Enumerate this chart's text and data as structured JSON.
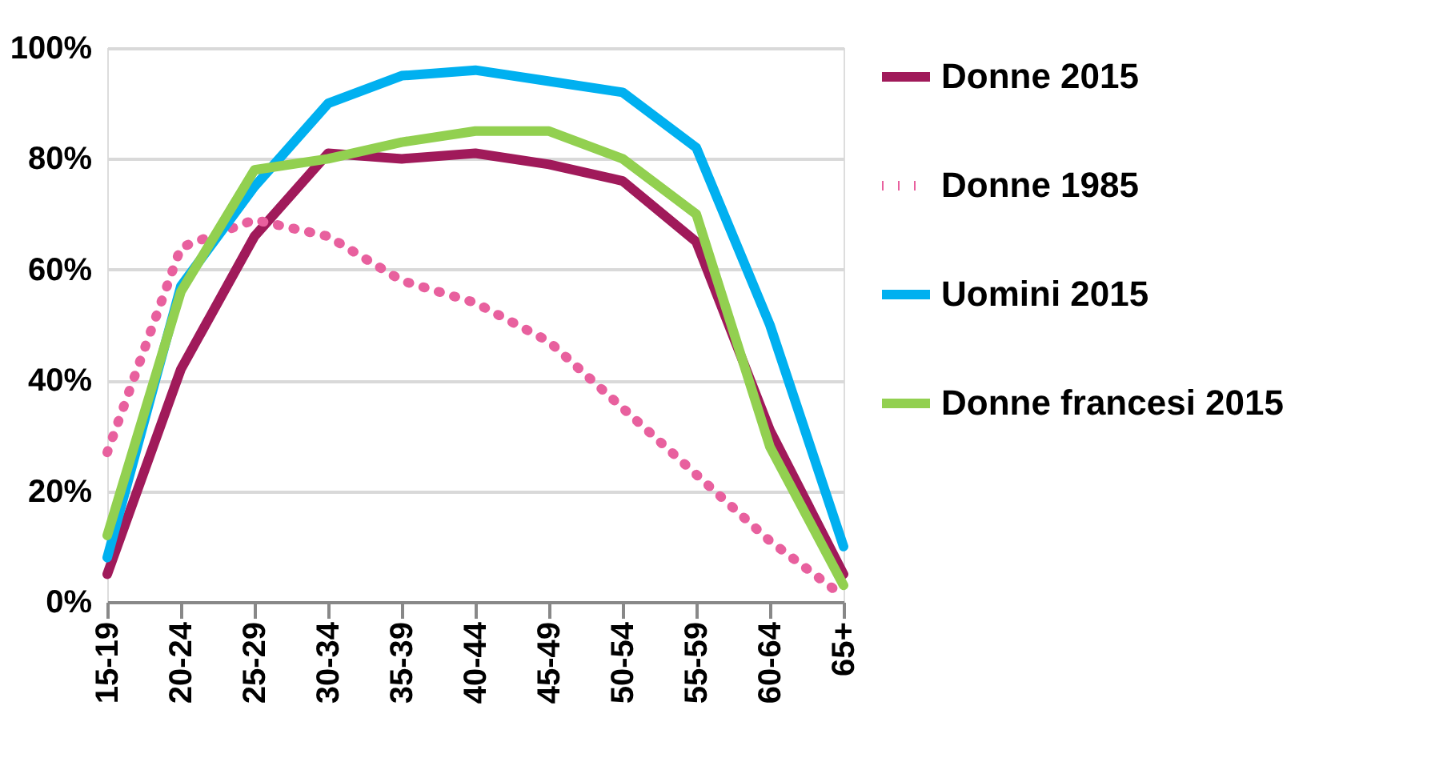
{
  "chart_data": {
    "type": "line",
    "categories": [
      "15-19",
      "20-24",
      "25-29",
      "30-34",
      "35-39",
      "40-44",
      "45-49",
      "50-54",
      "55-59",
      "60-64",
      "65+"
    ],
    "series": [
      {
        "name": "Donne 2015",
        "color": "#a01a5a",
        "line_style": "solid",
        "values": [
          5,
          42,
          66,
          81,
          80,
          81,
          79,
          76,
          65,
          31,
          5
        ]
      },
      {
        "name": "Donne 1985",
        "color": "#e8609e",
        "line_style": "dotted",
        "values": [
          27,
          64,
          69,
          66,
          58,
          54,
          47,
          35,
          23,
          11,
          1
        ]
      },
      {
        "name": "Uomini 2015",
        "color": "#00b0f0",
        "line_style": "solid",
        "values": [
          8,
          57,
          75,
          90,
          95,
          96,
          94,
          92,
          82,
          50,
          10
        ]
      },
      {
        "name": "Donne francesi 2015",
        "color": "#92d050",
        "line_style": "solid",
        "values": [
          12,
          56,
          78,
          80,
          83,
          85,
          85,
          80,
          70,
          28,
          3
        ]
      }
    ],
    "ylim": [
      0,
      100
    ],
    "yticks": [
      {
        "value": 0,
        "label": "0%"
      },
      {
        "value": 20,
        "label": "20%"
      },
      {
        "value": 40,
        "label": "40%"
      },
      {
        "value": 60,
        "label": "60%"
      },
      {
        "value": 80,
        "label": "80%"
      },
      {
        "value": 100,
        "label": "100%"
      }
    ],
    "grid": "y",
    "legend": "right",
    "marker": "none"
  }
}
